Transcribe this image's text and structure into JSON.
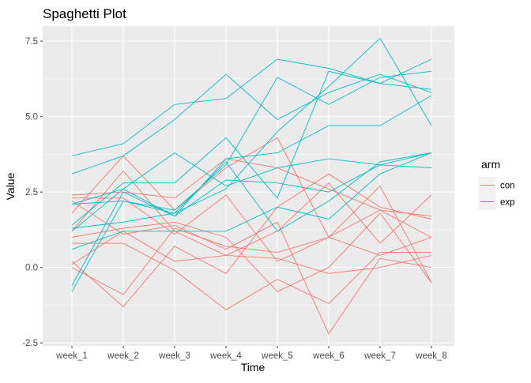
{
  "chart_data": {
    "type": "line",
    "title": "Spaghetti Plot",
    "xlabel": "Time",
    "ylabel": "Value",
    "categories": [
      "week_1",
      "week_2",
      "week_3",
      "week_4",
      "week_5",
      "week_6",
      "week_7",
      "week_8"
    ],
    "ylim": [
      -2.6,
      8.0
    ],
    "yticks": [
      -2.5,
      0.0,
      2.5,
      5.0,
      7.5
    ],
    "ytick_labels": [
      "-2.5",
      "0.0",
      "2.5",
      "5.0",
      "7.5"
    ],
    "grid": true,
    "legend": {
      "title": "arm",
      "position": "right",
      "entries": [
        {
          "label": "con",
          "color": "#F8766D"
        },
        {
          "label": "exp",
          "color": "#00BFC4"
        }
      ]
    },
    "colors": {
      "panel_bg": "#EBEBEB",
      "grid": "#FFFFFF",
      "con": "#F8766D",
      "exp": "#00BFC4"
    },
    "series": [
      {
        "group": "con",
        "values": [
          0.2,
          -1.3,
          0.7,
          -0.2,
          2.0,
          3.1,
          2.0,
          1.6
        ]
      },
      {
        "group": "con",
        "values": [
          1.2,
          3.2,
          1.2,
          0.4,
          0.3,
          -0.2,
          0.0,
          0.4
        ]
      },
      {
        "group": "con",
        "values": [
          2.4,
          2.5,
          2.3,
          3.6,
          3.3,
          2.6,
          1.9,
          1.7
        ]
      },
      {
        "group": "con",
        "values": [
          0.0,
          -0.9,
          1.3,
          0.7,
          0.5,
          1.0,
          0.4,
          1.0
        ]
      },
      {
        "group": "con",
        "values": [
          0.1,
          1.2,
          0.2,
          0.4,
          1.2,
          2.8,
          0.8,
          2.4
        ]
      },
      {
        "group": "con",
        "values": [
          0.8,
          0.8,
          -0.1,
          -1.4,
          -0.4,
          -1.2,
          0.5,
          0.5
        ]
      },
      {
        "group": "con",
        "values": [
          2.2,
          1.1,
          1.4,
          0.6,
          1.5,
          -2.2,
          0.3,
          0.0
        ]
      },
      {
        "group": "con",
        "values": [
          1.8,
          3.7,
          1.9,
          3.3,
          4.3,
          1.0,
          2.7,
          -0.5
        ]
      },
      {
        "group": "con",
        "values": [
          1.0,
          1.3,
          1.5,
          1.0,
          -0.8,
          0.0,
          1.8,
          -0.5
        ]
      },
      {
        "group": "con",
        "values": [
          2.3,
          2.3,
          1.1,
          2.4,
          0.2,
          1.0,
          1.9,
          1.0
        ]
      },
      {
        "group": "exp",
        "values": [
          3.7,
          4.1,
          5.4,
          5.6,
          6.9,
          6.6,
          6.1,
          5.9
        ]
      },
      {
        "group": "exp",
        "values": [
          3.1,
          3.7,
          4.9,
          6.4,
          4.9,
          5.8,
          6.4,
          5.8
        ]
      },
      {
        "group": "exp",
        "values": [
          2.1,
          2.6,
          3.8,
          2.7,
          3.3,
          3.6,
          3.4,
          3.3
        ]
      },
      {
        "group": "exp",
        "values": [
          1.4,
          2.8,
          2.8,
          4.3,
          2.3,
          6.5,
          6.1,
          6.9
        ]
      },
      {
        "group": "exp",
        "values": [
          -0.6,
          2.5,
          1.7,
          2.9,
          2.8,
          2.5,
          3.4,
          3.8
        ]
      },
      {
        "group": "exp",
        "values": [
          0.6,
          1.2,
          1.2,
          1.2,
          2.0,
          1.6,
          3.1,
          3.8
        ]
      },
      {
        "group": "exp",
        "values": [
          1.2,
          2.6,
          1.7,
          3.6,
          3.8,
          4.7,
          4.7,
          5.7
        ]
      },
      {
        "group": "exp",
        "values": [
          -0.8,
          2.2,
          1.8,
          2.6,
          4.5,
          6.0,
          7.6,
          4.7
        ]
      },
      {
        "group": "exp",
        "values": [
          2.1,
          2.2,
          1.9,
          3.4,
          6.3,
          5.4,
          6.3,
          6.5
        ]
      },
      {
        "group": "exp",
        "values": [
          1.3,
          1.5,
          1.8,
          3.5,
          1.2,
          2.2,
          3.5,
          3.8
        ]
      }
    ]
  }
}
